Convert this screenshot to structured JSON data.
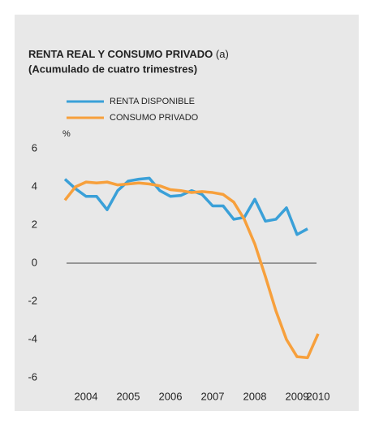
{
  "chart_data": {
    "type": "line",
    "title": "RENTA REAL Y CONSUMO PRIVADO",
    "title_note": "(a)",
    "subtitle": "(Acumulado de cuatro trimestres)",
    "ylabel": "%",
    "x": [
      2004,
      2004.25,
      2004.5,
      2004.75,
      2005,
      2005.25,
      2005.5,
      2005.75,
      2006,
      2006.25,
      2006.5,
      2006.75,
      2007,
      2007.25,
      2007.5,
      2007.75,
      2008,
      2008.25,
      2008.5,
      2008.75,
      2009,
      2009.25,
      2009.5,
      2009.75,
      2010
    ],
    "series": [
      {
        "name": "RENTA DISPONIBLE",
        "color": "#3aa0d8",
        "values": [
          4.4,
          3.9,
          3.5,
          3.5,
          2.8,
          3.8,
          4.3,
          4.4,
          4.45,
          3.8,
          3.5,
          3.55,
          3.8,
          3.6,
          3.0,
          3.0,
          2.3,
          2.4,
          3.35,
          2.2,
          2.3,
          2.9,
          1.5,
          1.8,
          null
        ]
      },
      {
        "name": "CONSUMO PRIVADO",
        "color": "#f7a03c",
        "values": [
          3.3,
          4.0,
          4.25,
          4.2,
          4.25,
          4.1,
          4.15,
          4.2,
          4.15,
          4.05,
          3.85,
          3.8,
          3.7,
          3.75,
          3.7,
          3.6,
          3.2,
          2.3,
          1.0,
          -0.7,
          -2.5,
          -4.0,
          -4.9,
          -4.95,
          -3.7
        ]
      }
    ],
    "xlim": [
      2004,
      2010
    ],
    "xticks": [
      {
        "value": 2004.5,
        "label": "2004"
      },
      {
        "value": 2005.5,
        "label": "2005"
      },
      {
        "value": 2006.5,
        "label": "2006"
      },
      {
        "value": 2007.5,
        "label": "2007"
      },
      {
        "value": 2008.5,
        "label": "2008"
      },
      {
        "value": 2009.5,
        "label": "2009"
      },
      {
        "value": 2010,
        "label": "2010"
      }
    ],
    "ylim": [
      -6,
      6
    ],
    "yticks": [
      6,
      4,
      2,
      0,
      -2,
      -4,
      -6
    ]
  }
}
